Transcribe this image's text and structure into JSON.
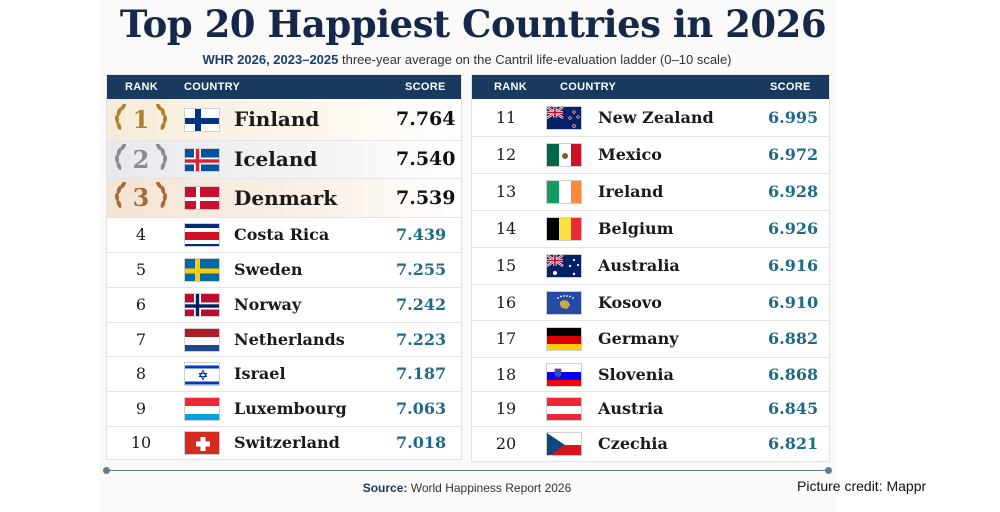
{
  "title": "Top 20 Happiest Countries in 2026",
  "subtitle_bold": "WHR 2026, 2023–2025",
  "subtitle_rest": "three-year average on the Cantril life-evaluation ladder (0–10 scale)",
  "headers": {
    "rank": "RANK",
    "country": "COUNTRY",
    "score": "SCORE"
  },
  "colors": {
    "header": "#173a5e",
    "score": "#1f6a86",
    "gold": "#b0802d",
    "silver": "#8b8b8b",
    "bronze": "#a56a3b"
  },
  "left_rows": [
    {
      "rank": "1",
      "country": "Finland",
      "score": "7.764",
      "medal": "gold",
      "flag": "finland"
    },
    {
      "rank": "2",
      "country": "Iceland",
      "score": "7.540",
      "medal": "silver",
      "flag": "iceland"
    },
    {
      "rank": "3",
      "country": "Denmark",
      "score": "7.539",
      "medal": "bronze",
      "flag": "denmark"
    },
    {
      "rank": "4",
      "country": "Costa Rica",
      "score": "7.439",
      "flag": "costa-rica"
    },
    {
      "rank": "5",
      "country": "Sweden",
      "score": "7.255",
      "flag": "sweden"
    },
    {
      "rank": "6",
      "country": "Norway",
      "score": "7.242",
      "flag": "norway"
    },
    {
      "rank": "7",
      "country": "Netherlands",
      "score": "7.223",
      "flag": "netherlands"
    },
    {
      "rank": "8",
      "country": "Israel",
      "score": "7.187",
      "flag": "israel"
    },
    {
      "rank": "9",
      "country": "Luxembourg",
      "score": "7.063",
      "flag": "luxembourg"
    },
    {
      "rank": "10",
      "country": "Switzerland",
      "score": "7.018",
      "flag": "switzerland"
    }
  ],
  "right_rows": [
    {
      "rank": "11",
      "country": "New Zealand",
      "score": "6.995",
      "flag": "new-zealand"
    },
    {
      "rank": "12",
      "country": "Mexico",
      "score": "6.972",
      "flag": "mexico"
    },
    {
      "rank": "13",
      "country": "Ireland",
      "score": "6.928",
      "flag": "ireland"
    },
    {
      "rank": "14",
      "country": "Belgium",
      "score": "6.926",
      "flag": "belgium"
    },
    {
      "rank": "15",
      "country": "Australia",
      "score": "6.916",
      "flag": "australia"
    },
    {
      "rank": "16",
      "country": "Kosovo",
      "score": "6.910",
      "flag": "kosovo"
    },
    {
      "rank": "17",
      "country": "Germany",
      "score": "6.882",
      "flag": "germany"
    },
    {
      "rank": "18",
      "country": "Slovenia",
      "score": "6.868",
      "flag": "slovenia"
    },
    {
      "rank": "19",
      "country": "Austria",
      "score": "6.845",
      "flag": "austria"
    },
    {
      "rank": "20",
      "country": "Czechia",
      "score": "6.821",
      "flag": "czechia"
    }
  ],
  "source_label": "Source:",
  "source_text": "World Happiness Report 2026",
  "credit": "Picture credit: Mappr"
}
